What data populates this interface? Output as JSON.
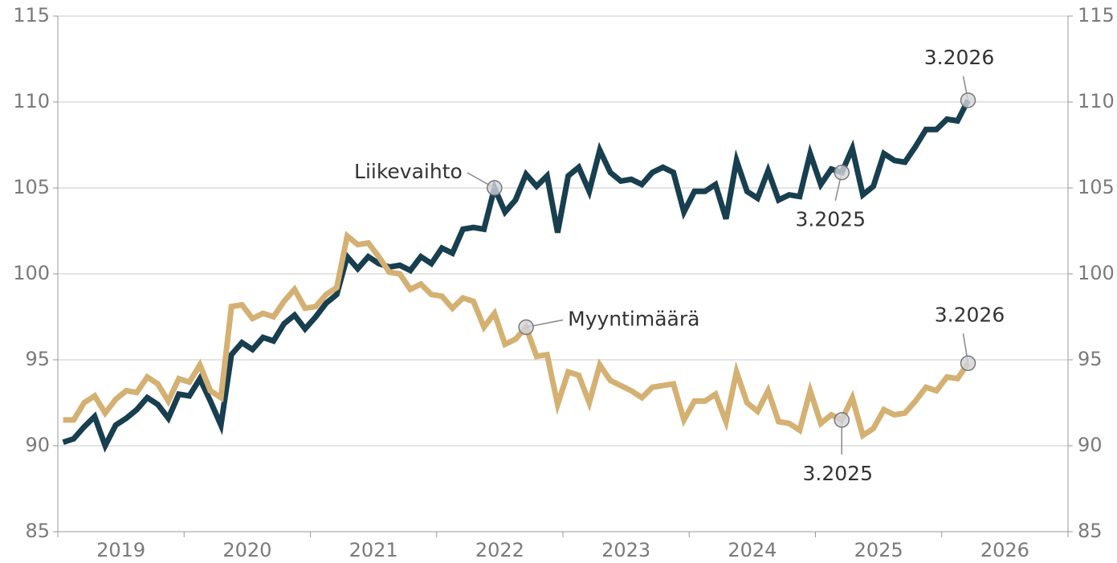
{
  "chart_data": {
    "type": "line",
    "x": [
      "1.2019",
      "2.2019",
      "3.2019",
      "4.2019",
      "5.2019",
      "6.2019",
      "7.2019",
      "8.2019",
      "9.2019",
      "10.2019",
      "11.2019",
      "12.2019",
      "1.2020",
      "2.2020",
      "3.2020",
      "4.2020",
      "5.2020",
      "6.2020",
      "7.2020",
      "8.2020",
      "9.2020",
      "10.2020",
      "11.2020",
      "12.2020",
      "1.2021",
      "2.2021",
      "3.2021",
      "4.2021",
      "5.2021",
      "6.2021",
      "7.2021",
      "8.2021",
      "9.2021",
      "10.2021",
      "11.2021",
      "12.2021",
      "1.2022",
      "2.2022",
      "3.2022",
      "4.2022",
      "5.2022",
      "6.2022",
      "7.2022",
      "8.2022",
      "9.2022",
      "10.2022",
      "11.2022",
      "12.2022",
      "1.2023",
      "2.2023",
      "3.2023",
      "4.2023",
      "5.2023",
      "6.2023",
      "7.2023",
      "8.2023",
      "9.2023",
      "10.2023",
      "11.2023",
      "12.2023",
      "1.2024",
      "2.2024",
      "3.2024",
      "4.2024",
      "5.2024",
      "6.2024",
      "7.2024",
      "8.2024",
      "9.2024",
      "10.2024",
      "11.2024",
      "12.2024",
      "1.2025",
      "2.2025",
      "3.2025",
      "4.2025",
      "5.2025",
      "6.2025",
      "7.2025",
      "8.2025",
      "9.2025",
      "10.2025",
      "11.2025",
      "12.2025",
      "1.2026",
      "2.2026",
      "3.2026"
    ],
    "xlim": [
      2019,
      2027
    ],
    "year_labels": [
      "2019",
      "2020",
      "2021",
      "2022",
      "2023",
      "2024",
      "2025",
      "2026"
    ],
    "series": [
      {
        "name": "Liikevaihto",
        "color": "#173f50",
        "labels": [
          "3.2025",
          "3.2026"
        ],
        "values": [
          90.2,
          90.4,
          91.1,
          91.7,
          90.0,
          91.2,
          91.6,
          92.1,
          92.8,
          92.4,
          91.6,
          93.0,
          92.9,
          93.9,
          92.6,
          91.2,
          95.3,
          96.0,
          95.6,
          96.3,
          96.1,
          97.1,
          97.6,
          96.8,
          97.5,
          98.3,
          98.8,
          101.0,
          100.3,
          101.0,
          100.6,
          100.4,
          100.5,
          100.2,
          101.0,
          100.6,
          101.5,
          101.2,
          102.6,
          102.7,
          102.6,
          105.0,
          103.6,
          104.3,
          105.8,
          105.1,
          105.7,
          102.4,
          105.7,
          106.2,
          104.8,
          107.2,
          105.9,
          105.4,
          105.5,
          105.2,
          105.9,
          106.2,
          105.9,
          103.6,
          104.8,
          104.8,
          105.2,
          103.2,
          106.6,
          104.8,
          104.4,
          106.0,
          104.3,
          104.6,
          104.5,
          107.0,
          105.2,
          106.1,
          105.9,
          107.3,
          104.6,
          105.1,
          107.0,
          106.6,
          106.5,
          107.4,
          108.4,
          108.4,
          109.0,
          108.9,
          110.1
        ]
      },
      {
        "name": "Myyntimäärä",
        "color": "#d4b173",
        "labels": [
          "3.2025",
          "3.2026"
        ],
        "values": [
          91.5,
          91.5,
          92.5,
          92.9,
          91.9,
          92.7,
          93.2,
          93.1,
          94.0,
          93.6,
          92.6,
          93.9,
          93.7,
          94.7,
          93.2,
          92.8,
          98.1,
          98.2,
          97.4,
          97.7,
          97.5,
          98.4,
          99.1,
          98.0,
          98.1,
          98.8,
          99.2,
          102.2,
          101.7,
          101.8,
          101.0,
          100.1,
          100.0,
          99.1,
          99.4,
          98.8,
          98.7,
          98.0,
          98.6,
          98.4,
          96.9,
          97.7,
          95.9,
          96.2,
          96.9,
          95.2,
          95.3,
          92.4,
          94.3,
          94.1,
          92.5,
          94.7,
          93.8,
          93.5,
          93.2,
          92.8,
          93.4,
          93.5,
          93.6,
          91.5,
          92.6,
          92.6,
          93.0,
          91.4,
          94.3,
          92.5,
          92.0,
          93.2,
          91.4,
          91.3,
          90.9,
          93.2,
          91.3,
          91.8,
          91.5,
          92.8,
          90.6,
          91.0,
          92.1,
          91.8,
          91.9,
          92.6,
          93.4,
          93.2,
          94.0,
          93.9,
          94.8
        ]
      }
    ],
    "ylim": [
      85,
      115
    ],
    "yticks": [
      85,
      90,
      95,
      100,
      105,
      110,
      115
    ],
    "y2lim": [
      85,
      115
    ],
    "y2ticks": [
      85,
      90,
      95,
      100,
      105,
      110,
      115
    ],
    "grid": true
  }
}
